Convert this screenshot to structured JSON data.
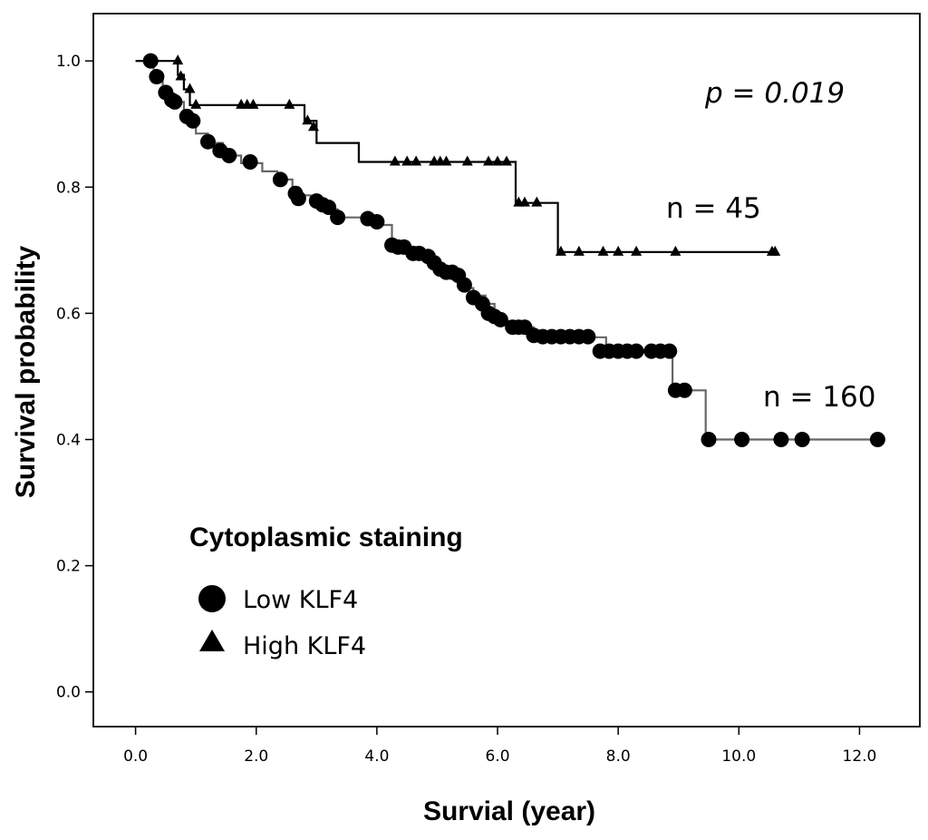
{
  "chart_data": {
    "type": "line",
    "subtype": "kaplan-meier",
    "xlabel": "Survial (year)",
    "ylabel": "Survival probability",
    "xlim": [
      -0.7,
      13.0
    ],
    "ylim": [
      -0.055,
      1.075
    ],
    "xticks": [
      0.0,
      2.0,
      4.0,
      6.0,
      8.0,
      10.0,
      12.0
    ],
    "xtick_labels": [
      "0.0",
      "2.0",
      "4.0",
      "6.0",
      "8.0",
      "10.0",
      "12.0"
    ],
    "yticks": [
      0.0,
      0.2,
      0.4,
      0.6,
      0.8,
      1.0
    ],
    "ytick_labels": [
      "0.0",
      "0.2",
      "0.4",
      "0.6",
      "0.8",
      "1.0"
    ],
    "grid": false,
    "legend": {
      "title": "Cytoplasmic staining",
      "placement": "bottom-left",
      "entries": [
        {
          "label": "Low KLF4",
          "marker": "circle"
        },
        {
          "label": "High KLF4",
          "marker": "triangle"
        }
      ]
    },
    "annotations": [
      {
        "text": "p = 0.019",
        "x": 10.3,
        "y": 0.925,
        "style": "italic"
      },
      {
        "text": "n = 45",
        "x": 9.55,
        "y": 0.745
      },
      {
        "text": "n = 160",
        "x": 10.5,
        "y": 0.455
      }
    ],
    "series": [
      {
        "name": "Low KLF4",
        "marker": "circle",
        "color": "#000000",
        "line_color": "#666666",
        "steps": [
          [
            0.0,
            1.0
          ],
          [
            0.3,
            0.975
          ],
          [
            0.45,
            0.95
          ],
          [
            0.6,
            0.935
          ],
          [
            0.8,
            0.91
          ],
          [
            1.0,
            0.885
          ],
          [
            1.2,
            0.87
          ],
          [
            1.45,
            0.85
          ],
          [
            1.75,
            0.838
          ],
          [
            2.1,
            0.825
          ],
          [
            2.35,
            0.812
          ],
          [
            2.6,
            0.8
          ],
          [
            2.7,
            0.787
          ],
          [
            2.9,
            0.775
          ],
          [
            3.1,
            0.765
          ],
          [
            3.35,
            0.752
          ],
          [
            3.95,
            0.74
          ],
          [
            4.25,
            0.71
          ],
          [
            4.5,
            0.7
          ],
          [
            4.65,
            0.692
          ],
          [
            4.85,
            0.682
          ],
          [
            4.95,
            0.672
          ],
          [
            5.05,
            0.662
          ],
          [
            5.3,
            0.652
          ],
          [
            5.45,
            0.64
          ],
          [
            5.6,
            0.628
          ],
          [
            5.8,
            0.615
          ],
          [
            5.95,
            0.6
          ],
          [
            6.05,
            0.588
          ],
          [
            6.2,
            0.578
          ],
          [
            6.6,
            0.562
          ],
          [
            7.8,
            0.54
          ],
          [
            8.9,
            0.478
          ],
          [
            9.45,
            0.4
          ],
          [
            12.3,
            0.4
          ]
        ],
        "points": [
          [
            0.25,
            1.0
          ],
          [
            0.35,
            0.975
          ],
          [
            0.5,
            0.95
          ],
          [
            0.6,
            0.938
          ],
          [
            0.65,
            0.935
          ],
          [
            0.85,
            0.912
          ],
          [
            0.95,
            0.905
          ],
          [
            1.2,
            0.872
          ],
          [
            1.4,
            0.858
          ],
          [
            1.55,
            0.85
          ],
          [
            1.9,
            0.84
          ],
          [
            2.4,
            0.812
          ],
          [
            2.65,
            0.79
          ],
          [
            2.7,
            0.782
          ],
          [
            3.0,
            0.778
          ],
          [
            3.1,
            0.772
          ],
          [
            3.2,
            0.768
          ],
          [
            3.35,
            0.752
          ],
          [
            3.85,
            0.75
          ],
          [
            4.0,
            0.745
          ],
          [
            4.25,
            0.708
          ],
          [
            4.35,
            0.705
          ],
          [
            4.45,
            0.705
          ],
          [
            4.6,
            0.695
          ],
          [
            4.7,
            0.695
          ],
          [
            4.85,
            0.69
          ],
          [
            4.95,
            0.68
          ],
          [
            5.05,
            0.67
          ],
          [
            5.15,
            0.665
          ],
          [
            5.25,
            0.665
          ],
          [
            5.35,
            0.66
          ],
          [
            5.45,
            0.645
          ],
          [
            5.6,
            0.625
          ],
          [
            5.75,
            0.615
          ],
          [
            5.85,
            0.6
          ],
          [
            5.95,
            0.595
          ],
          [
            6.05,
            0.59
          ],
          [
            6.25,
            0.578
          ],
          [
            6.35,
            0.578
          ],
          [
            6.45,
            0.578
          ],
          [
            6.6,
            0.565
          ],
          [
            6.75,
            0.563
          ],
          [
            6.9,
            0.563
          ],
          [
            7.05,
            0.563
          ],
          [
            7.2,
            0.563
          ],
          [
            7.35,
            0.563
          ],
          [
            7.5,
            0.563
          ],
          [
            7.7,
            0.54
          ],
          [
            7.85,
            0.54
          ],
          [
            8.0,
            0.54
          ],
          [
            8.15,
            0.54
          ],
          [
            8.3,
            0.54
          ],
          [
            8.55,
            0.54
          ],
          [
            8.7,
            0.54
          ],
          [
            8.85,
            0.54
          ],
          [
            8.95,
            0.478
          ],
          [
            9.1,
            0.478
          ],
          [
            9.5,
            0.4
          ],
          [
            10.05,
            0.4
          ],
          [
            10.7,
            0.4
          ],
          [
            11.05,
            0.4
          ],
          [
            12.3,
            0.4
          ]
        ]
      },
      {
        "name": "High KLF4",
        "marker": "triangle",
        "color": "#000000",
        "line_color": "#000000",
        "steps": [
          [
            0.0,
            1.0
          ],
          [
            0.7,
            0.978
          ],
          [
            0.8,
            0.955
          ],
          [
            0.9,
            0.93
          ],
          [
            2.8,
            0.905
          ],
          [
            3.0,
            0.87
          ],
          [
            3.7,
            0.84
          ],
          [
            6.3,
            0.775
          ],
          [
            7.0,
            0.697
          ],
          [
            10.6,
            0.697
          ]
        ],
        "points": [
          [
            0.7,
            1.0
          ],
          [
            0.75,
            0.975
          ],
          [
            0.9,
            0.955
          ],
          [
            1.0,
            0.93
          ],
          [
            1.75,
            0.93
          ],
          [
            1.85,
            0.93
          ],
          [
            1.95,
            0.93
          ],
          [
            2.55,
            0.93
          ],
          [
            2.85,
            0.905
          ],
          [
            2.95,
            0.895
          ],
          [
            4.3,
            0.84
          ],
          [
            4.5,
            0.84
          ],
          [
            4.65,
            0.84
          ],
          [
            4.95,
            0.84
          ],
          [
            5.05,
            0.84
          ],
          [
            5.15,
            0.84
          ],
          [
            5.5,
            0.84
          ],
          [
            5.85,
            0.84
          ],
          [
            6.0,
            0.84
          ],
          [
            6.15,
            0.84
          ],
          [
            6.35,
            0.775
          ],
          [
            6.45,
            0.775
          ],
          [
            6.65,
            0.775
          ],
          [
            7.05,
            0.697
          ],
          [
            7.35,
            0.697
          ],
          [
            7.75,
            0.697
          ],
          [
            8.0,
            0.697
          ],
          [
            8.3,
            0.697
          ],
          [
            8.95,
            0.697
          ],
          [
            10.55,
            0.697
          ],
          [
            10.6,
            0.697
          ]
        ]
      }
    ]
  }
}
